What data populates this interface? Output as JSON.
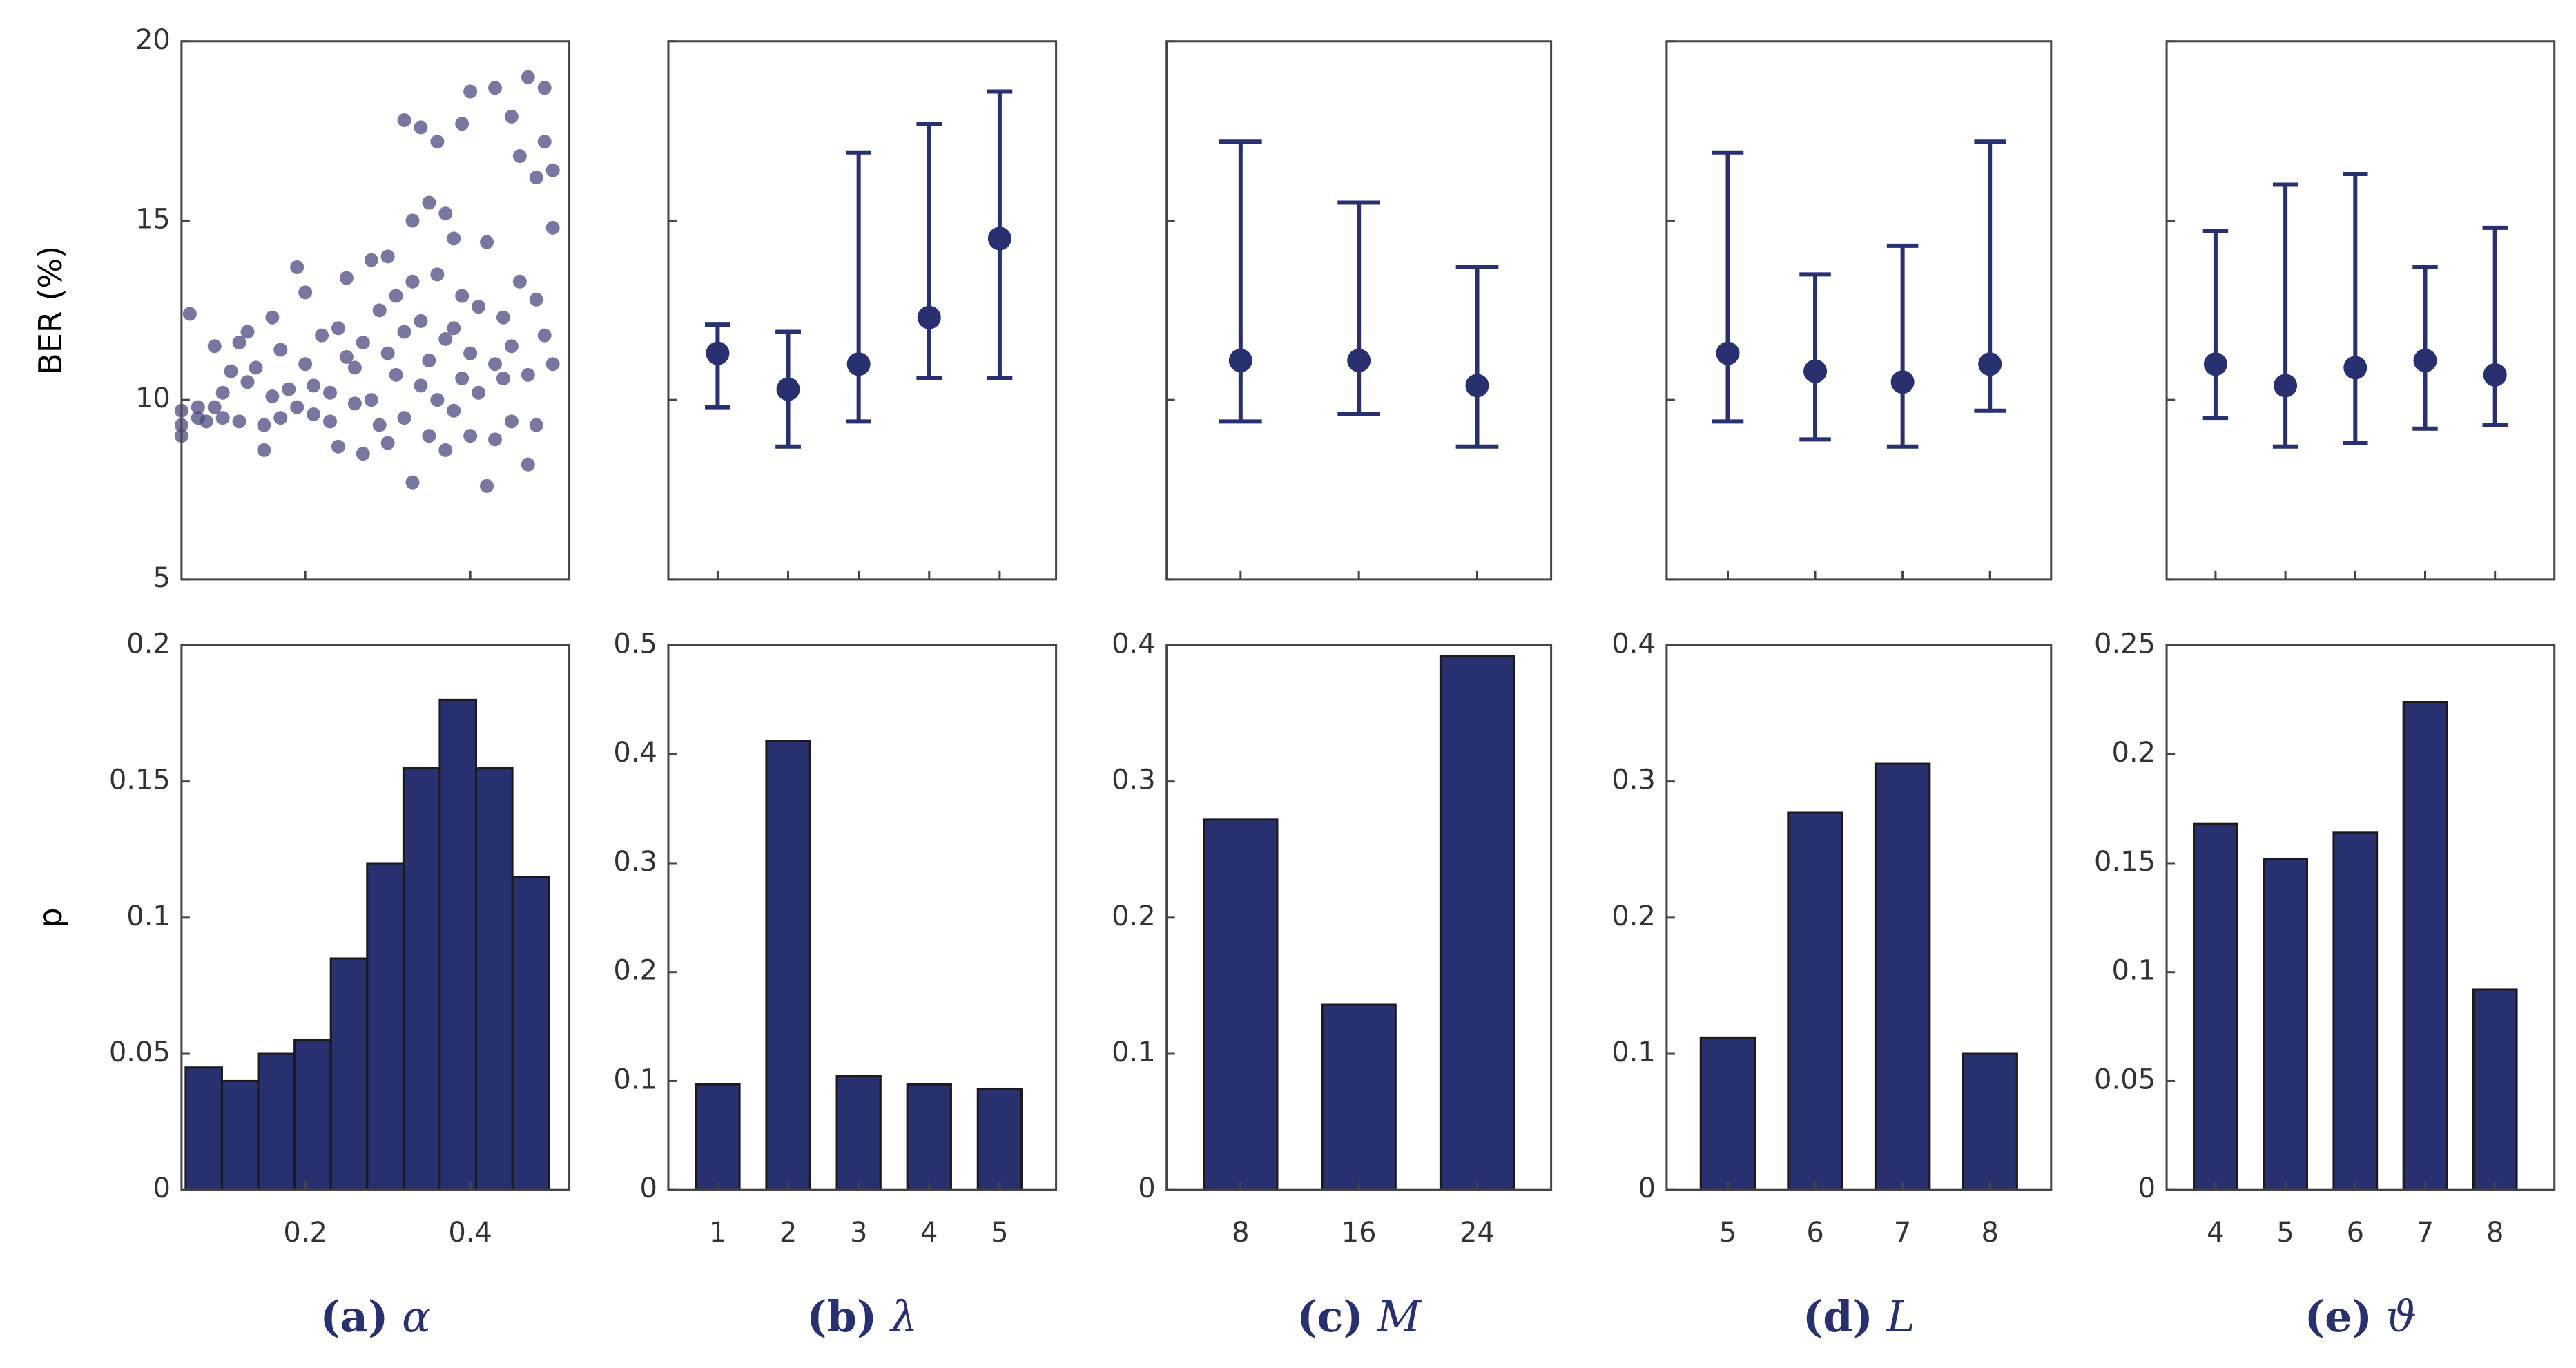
{
  "chart_data": [
    {
      "caption": {
        "tag": "(a)",
        "symbol": "α"
      },
      "xlim": [
        0.05,
        0.52
      ],
      "xticks": [
        0.2,
        0.4
      ],
      "top": {
        "type": "scatter",
        "ylabel": "BER (%)",
        "ylim": [
          5,
          20
        ],
        "yticks": [
          5,
          10,
          15,
          20
        ],
        "color": "#4a4a80",
        "x": [
          0.05,
          0.05,
          0.05,
          0.06,
          0.07,
          0.07,
          0.08,
          0.09,
          0.09,
          0.1,
          0.1,
          0.11,
          0.12,
          0.12,
          0.13,
          0.13,
          0.14,
          0.15,
          0.15,
          0.16,
          0.16,
          0.17,
          0.17,
          0.18,
          0.19,
          0.19,
          0.2,
          0.2,
          0.21,
          0.21,
          0.22,
          0.23,
          0.23,
          0.24,
          0.24,
          0.25,
          0.25,
          0.26,
          0.26,
          0.27,
          0.27,
          0.28,
          0.28,
          0.29,
          0.29,
          0.3,
          0.3,
          0.3,
          0.31,
          0.31,
          0.32,
          0.32,
          0.32,
          0.33,
          0.33,
          0.33,
          0.34,
          0.34,
          0.34,
          0.35,
          0.35,
          0.35,
          0.36,
          0.36,
          0.36,
          0.37,
          0.37,
          0.37,
          0.38,
          0.38,
          0.38,
          0.39,
          0.39,
          0.39,
          0.4,
          0.4,
          0.4,
          0.41,
          0.41,
          0.42,
          0.42,
          0.43,
          0.43,
          0.43,
          0.44,
          0.44,
          0.45,
          0.45,
          0.45,
          0.46,
          0.46,
          0.47,
          0.47,
          0.47,
          0.48,
          0.48,
          0.48,
          0.49,
          0.49,
          0.49,
          0.5,
          0.5,
          0.5
        ],
        "values": [
          9.0,
          9.3,
          9.7,
          12.4,
          9.8,
          9.5,
          9.4,
          11.5,
          9.8,
          10.2,
          9.5,
          10.8,
          11.6,
          9.4,
          10.5,
          11.9,
          10.9,
          9.3,
          8.6,
          12.3,
          10.1,
          9.5,
          11.4,
          10.3,
          13.7,
          9.8,
          13.0,
          11.0,
          10.4,
          9.6,
          11.8,
          10.2,
          9.4,
          12.0,
          8.7,
          11.2,
          13.4,
          9.9,
          10.9,
          8.5,
          11.6,
          13.9,
          10.0,
          12.5,
          9.3,
          11.3,
          14.0,
          8.8,
          10.7,
          12.9,
          9.5,
          11.9,
          17.8,
          13.3,
          7.7,
          15.0,
          10.4,
          12.2,
          17.6,
          11.1,
          9.0,
          15.5,
          10.0,
          13.5,
          17.2,
          11.7,
          8.6,
          15.2,
          12.0,
          9.7,
          14.5,
          10.6,
          12.9,
          17.7,
          11.3,
          9.0,
          18.6,
          10.2,
          12.6,
          7.6,
          14.4,
          11.0,
          8.9,
          18.7,
          10.6,
          12.3,
          17.9,
          11.5,
          9.4,
          13.3,
          16.8,
          10.7,
          19.0,
          8.2,
          16.2,
          12.8,
          9.3,
          17.2,
          11.8,
          18.7,
          16.4,
          14.8,
          11.0
        ]
      },
      "bottom": {
        "type": "histogram",
        "ylabel": "p",
        "ylim": [
          0,
          0.2
        ],
        "yticks": [
          0,
          0.05,
          0.1,
          0.15,
          0.2
        ],
        "color": "#283070",
        "bins": [
          0.055,
          0.099,
          0.143,
          0.187,
          0.231,
          0.275,
          0.319,
          0.363,
          0.407,
          0.451,
          0.495
        ],
        "values": [
          0.045,
          0.04,
          0.05,
          0.055,
          0.085,
          0.12,
          0.155,
          0.18,
          0.155,
          0.115
        ]
      }
    },
    {
      "caption": {
        "tag": "(b)",
        "symbol": "λ"
      },
      "xlim": [
        0.3,
        5.8
      ],
      "xticks": [
        1,
        2,
        3,
        4,
        5
      ],
      "top": {
        "type": "errorbar",
        "ylim": [
          5,
          20
        ],
        "yticks": [
          5,
          10,
          15,
          20
        ],
        "ytick_labels": false,
        "color": "#283070",
        "values": [
          11.3,
          10.3,
          11.0,
          12.3,
          14.5
        ],
        "low": [
          9.8,
          8.7,
          9.4,
          10.6,
          10.6
        ],
        "high": [
          12.1,
          11.9,
          16.9,
          17.7,
          18.6
        ]
      },
      "bottom": {
        "type": "bar",
        "ylim": [
          0,
          0.5
        ],
        "yticks": [
          0,
          0.1,
          0.2,
          0.3,
          0.4,
          0.5
        ],
        "color": "#283070",
        "values": [
          0.097,
          0.412,
          0.105,
          0.097,
          0.093
        ]
      }
    },
    {
      "caption": {
        "tag": "(c)",
        "symbol": "M"
      },
      "xlim": [
        3,
        29
      ],
      "xticks": [
        8,
        16,
        24
      ],
      "top": {
        "type": "errorbar",
        "ylim": [
          5,
          20
        ],
        "yticks": [
          5,
          10,
          15,
          20
        ],
        "ytick_labels": false,
        "color": "#283070",
        "values": [
          11.1,
          11.1,
          10.4
        ],
        "low": [
          9.4,
          9.6,
          8.7
        ],
        "high": [
          17.2,
          15.5,
          13.7
        ]
      },
      "bottom": {
        "type": "bar",
        "ylim": [
          0,
          0.4
        ],
        "yticks": [
          0,
          0.1,
          0.2,
          0.3,
          0.4
        ],
        "color": "#283070",
        "values": [
          0.272,
          0.136,
          0.392
        ]
      }
    },
    {
      "caption": {
        "tag": "(d)",
        "symbol": "L"
      },
      "xlim": [
        4.3,
        8.7
      ],
      "xticks": [
        5,
        6,
        7,
        8
      ],
      "top": {
        "type": "errorbar",
        "ylim": [
          5,
          20
        ],
        "yticks": [
          5,
          10,
          15,
          20
        ],
        "ytick_labels": false,
        "color": "#283070",
        "values": [
          11.3,
          10.8,
          10.5,
          11.0
        ],
        "low": [
          9.4,
          8.9,
          8.7,
          9.7
        ],
        "high": [
          16.9,
          13.5,
          14.3,
          17.2
        ]
      },
      "bottom": {
        "type": "bar",
        "ylim": [
          0,
          0.4
        ],
        "yticks": [
          0,
          0.1,
          0.2,
          0.3,
          0.4
        ],
        "color": "#283070",
        "values": [
          0.112,
          0.277,
          0.313,
          0.1
        ]
      }
    },
    {
      "caption": {
        "tag": "(e)",
        "symbol": "ϑ"
      },
      "xlim": [
        3.3,
        8.85
      ],
      "xticks": [
        4,
        5,
        6,
        7,
        8
      ],
      "top": {
        "type": "errorbar",
        "ylim": [
          5,
          20
        ],
        "yticks": [
          5,
          10,
          15,
          20
        ],
        "ytick_labels": false,
        "color": "#283070",
        "values": [
          11.0,
          10.4,
          10.9,
          11.1,
          10.7
        ],
        "low": [
          9.5,
          8.7,
          8.8,
          9.2,
          9.3
        ],
        "high": [
          14.7,
          16.0,
          16.3,
          13.7,
          14.8
        ]
      },
      "bottom": {
        "type": "bar",
        "ylim": [
          0,
          0.25
        ],
        "yticks": [
          0,
          0.05,
          0.1,
          0.15,
          0.2,
          0.25
        ],
        "color": "#283070",
        "values": [
          0.168,
          0.152,
          0.164,
          0.224,
          0.092
        ]
      }
    }
  ]
}
